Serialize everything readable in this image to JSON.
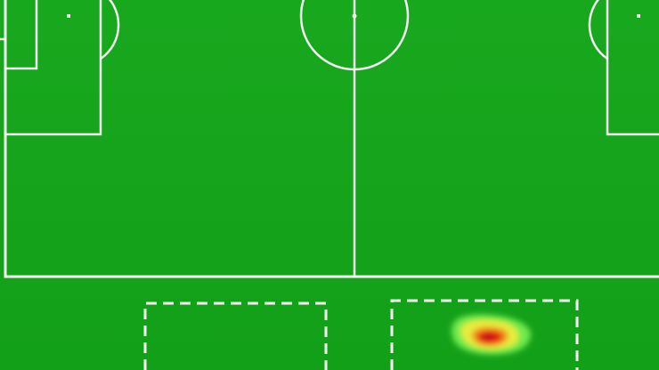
{
  "colors": {
    "pitch_green": "#16a41c",
    "line_white": "#f4f7f1",
    "heat_outer": "#71ee50",
    "heat_mid": "#f2ee3a",
    "heat_core": "#e51c0c"
  },
  "heatmap": {
    "zones": 1,
    "peak_intensity": "high"
  }
}
